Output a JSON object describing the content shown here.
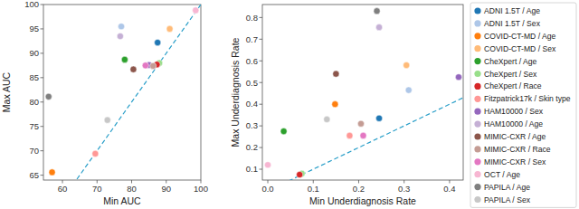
{
  "chart_data": [
    {
      "type": "scatter",
      "x_label": "Min AUC",
      "y_label": "Max AUC",
      "xlim": [
        54.5,
        100
      ],
      "ylim": [
        64,
        100
      ],
      "xticks": [
        60,
        70,
        80,
        90,
        100
      ],
      "yticks": [
        65,
        70,
        75,
        80,
        85,
        90,
        95,
        100
      ],
      "grid": false,
      "series": [
        {
          "color": "#1f77b4",
          "x": [
            87.5
          ],
          "values": [
            92.2
          ]
        },
        {
          "color": "#aec7e8",
          "x": [
            77
          ],
          "values": [
            95.5
          ]
        },
        {
          "color": "#ff7f0e",
          "x": [
            57
          ],
          "values": [
            65.6
          ]
        },
        {
          "color": "#ffbb78",
          "x": [
            91
          ],
          "values": [
            95
          ]
        },
        {
          "color": "#2ca02c",
          "x": [
            78
          ],
          "values": [
            88.7
          ]
        },
        {
          "color": "#98df8a",
          "x": [
            88
          ],
          "values": [
            88
          ]
        },
        {
          "color": "#d62728",
          "x": [
            87.3
          ],
          "values": [
            87.7
          ]
        },
        {
          "color": "#ff9896",
          "x": [
            69.5
          ],
          "values": [
            69.4
          ]
        },
        {
          "color": "#9467bd",
          "x": [
            85
          ],
          "values": [
            87.6
          ]
        },
        {
          "color": "#c5b0d5",
          "x": [
            76.7
          ],
          "values": [
            93.5
          ]
        },
        {
          "color": "#8c564b",
          "x": [
            80.5
          ],
          "values": [
            86.7
          ]
        },
        {
          "color": "#c49c94",
          "x": [
            86.2
          ],
          "values": [
            87.4
          ]
        },
        {
          "color": "#e377c2",
          "x": [
            84
          ],
          "values": [
            87.5
          ]
        },
        {
          "color": "#f7b6d2",
          "x": [
            98.5
          ],
          "values": [
            98.8
          ]
        },
        {
          "color": "#7f7f7f",
          "x": [
            56
          ],
          "values": [
            81.1
          ]
        },
        {
          "color": "#c7c7c7",
          "x": [
            73
          ],
          "values": [
            76.3
          ]
        }
      ]
    },
    {
      "type": "scatter",
      "x_label": "Min Underdiagnosis Rate",
      "y_label": "Max Underdiagnosis Rate",
      "xlim": [
        -0.012,
        0.43
      ],
      "ylim": [
        0.05,
        0.86
      ],
      "xticks": [
        {
          "value": 0,
          "label": "0.0"
        },
        0.1,
        0.2,
        0.3,
        0.4
      ],
      "yticks": [
        0.1,
        0.2,
        0.3,
        0.4,
        0.5,
        0.6,
        0.7,
        0.8
      ],
      "grid": false,
      "legend": "right",
      "series": [
        {
          "name": "ADNI 1.5T / Age",
          "color": "#1f77b4",
          "x": [
            0.245
          ],
          "values": [
            0.335
          ]
        },
        {
          "name": "ADNI 1.5T / Sex",
          "color": "#aec7e8",
          "x": [
            0.31
          ],
          "values": [
            0.465
          ]
        },
        {
          "name": "COVID-CT-MD / Age",
          "color": "#ff7f0e",
          "x": [
            0.148
          ],
          "values": [
            0.4
          ]
        },
        {
          "name": "COVID-CT-MD / Sex",
          "color": "#ffbb78",
          "x": [
            0.305
          ],
          "values": [
            0.58
          ]
        },
        {
          "name": "CheXpert / Age",
          "color": "#2ca02c",
          "x": [
            0.035
          ],
          "values": [
            0.275
          ]
        },
        {
          "name": "CheXpert / Sex",
          "color": "#98df8a",
          "x": [
            0.075
          ],
          "values": [
            0.08
          ]
        },
        {
          "name": "CheXpert / Race",
          "color": "#d62728",
          "x": [
            0.07
          ],
          "values": [
            0.075
          ]
        },
        {
          "name": "Fitzpatrick17k / Skin type",
          "color": "#ff9896",
          "x": [
            0.18
          ],
          "values": [
            0.255
          ]
        },
        {
          "name": "HAM10000 / Sex",
          "color": "#9467bd",
          "x": [
            0.42
          ],
          "values": [
            0.525
          ]
        },
        {
          "name": "HAM10000 / Age",
          "color": "#c5b0d5",
          "x": [
            0.245
          ],
          "values": [
            0.755
          ]
        },
        {
          "name": "MIMIC-CXR / Age",
          "color": "#8c564b",
          "x": [
            0.15
          ],
          "values": [
            0.54
          ]
        },
        {
          "name": "MIMIC-CXR / Race",
          "color": "#c49c94",
          "x": [
            0.205
          ],
          "values": [
            0.31
          ]
        },
        {
          "name": "MIMIC-CXR / Sex",
          "color": "#e377c2",
          "x": [
            0.21
          ],
          "values": [
            0.255
          ]
        },
        {
          "name": "OCT / Age",
          "color": "#f7b6d2",
          "x": [
            0.0
          ],
          "values": [
            0.12
          ]
        },
        {
          "name": "PAPILA / Age",
          "color": "#7f7f7f",
          "x": [
            0.24
          ],
          "values": [
            0.83
          ]
        },
        {
          "name": "PAPILA / Sex",
          "color": "#c7c7c7",
          "x": [
            0.13
          ],
          "values": [
            0.33
          ]
        }
      ]
    }
  ]
}
